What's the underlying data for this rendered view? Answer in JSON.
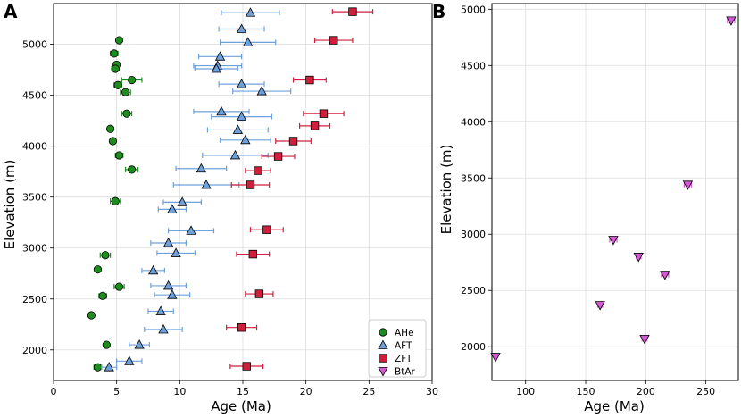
{
  "chart_data": [
    {
      "type": "scatter",
      "panel": "A",
      "xlabel": "Age (Ma)",
      "ylabel": "Elevation (m)",
      "xlim": [
        0,
        30
      ],
      "ylim": [
        1700,
        5400
      ],
      "xticks": [
        0,
        5,
        10,
        15,
        20,
        25,
        30
      ],
      "yticks": [
        2000,
        2500,
        3000,
        3500,
        4000,
        4500,
        5000
      ],
      "grid": true,
      "legend": "bottom-right",
      "series": [
        {
          "name": "AHe",
          "marker": "circle",
          "color": "#1e8c1e",
          "points": [
            {
              "x": 5.2,
              "y": 5040,
              "e": 0
            },
            {
              "x": 4.8,
              "y": 4910,
              "e": 0.3
            },
            {
              "x": 5.0,
              "y": 4800,
              "e": 0
            },
            {
              "x": 4.9,
              "y": 4760,
              "e": 0.3
            },
            {
              "x": 6.2,
              "y": 4650,
              "e": 0.8
            },
            {
              "x": 5.1,
              "y": 4600,
              "e": 0.3
            },
            {
              "x": 5.7,
              "y": 4530,
              "e": 0.4
            },
            {
              "x": 5.8,
              "y": 4320,
              "e": 0.4
            },
            {
              "x": 4.5,
              "y": 4170,
              "e": 0
            },
            {
              "x": 4.7,
              "y": 4050,
              "e": 0
            },
            {
              "x": 5.2,
              "y": 3910,
              "e": 0.3
            },
            {
              "x": 6.2,
              "y": 3770,
              "e": 0.5
            },
            {
              "x": 4.9,
              "y": 3460,
              "e": 0.4
            },
            {
              "x": 4.1,
              "y": 2930,
              "e": 0.4
            },
            {
              "x": 3.5,
              "y": 2790,
              "e": 0
            },
            {
              "x": 5.2,
              "y": 2620,
              "e": 0.4
            },
            {
              "x": 3.9,
              "y": 2530,
              "e": 0.3
            },
            {
              "x": 3.0,
              "y": 2340,
              "e": 0
            },
            {
              "x": 4.2,
              "y": 2050,
              "e": 0
            },
            {
              "x": 3.5,
              "y": 1830,
              "e": 0.3
            }
          ]
        },
        {
          "name": "AFT",
          "marker": "triangle-up",
          "color": "#6ea0dc",
          "points": [
            {
              "x": 15.6,
              "y": 5310,
              "e": 2.3
            },
            {
              "x": 14.9,
              "y": 5150,
              "e": 1.8
            },
            {
              "x": 15.4,
              "y": 5020,
              "e": 2.2
            },
            {
              "x": 13.2,
              "y": 4880,
              "e": 1.7
            },
            {
              "x": 13.0,
              "y": 4790,
              "e": 1.9
            },
            {
              "x": 12.9,
              "y": 4760,
              "e": 1.7
            },
            {
              "x": 14.9,
              "y": 4610,
              "e": 1.8
            },
            {
              "x": 16.5,
              "y": 4540,
              "e": 2.3
            },
            {
              "x": 13.3,
              "y": 4340,
              "e": 2.2
            },
            {
              "x": 14.9,
              "y": 4290,
              "e": 2.4
            },
            {
              "x": 14.6,
              "y": 4160,
              "e": 2.4
            },
            {
              "x": 15.2,
              "y": 4060,
              "e": 2.0
            },
            {
              "x": 14.4,
              "y": 3910,
              "e": 2.6
            },
            {
              "x": 11.7,
              "y": 3780,
              "e": 2.0
            },
            {
              "x": 12.1,
              "y": 3620,
              "e": 2.6
            },
            {
              "x": 10.2,
              "y": 3450,
              "e": 1.5
            },
            {
              "x": 9.4,
              "y": 3380,
              "e": 1.1
            },
            {
              "x": 10.9,
              "y": 3170,
              "e": 1.8
            },
            {
              "x": 9.1,
              "y": 3050,
              "e": 1.4
            },
            {
              "x": 9.7,
              "y": 2950,
              "e": 1.5
            },
            {
              "x": 7.9,
              "y": 2780,
              "e": 0.9
            },
            {
              "x": 9.1,
              "y": 2630,
              "e": 1.4
            },
            {
              "x": 9.4,
              "y": 2540,
              "e": 1.4
            },
            {
              "x": 8.5,
              "y": 2380,
              "e": 1.0
            },
            {
              "x": 8.7,
              "y": 2200,
              "e": 1.5
            },
            {
              "x": 6.8,
              "y": 2050,
              "e": 0.8
            },
            {
              "x": 6.0,
              "y": 1890,
              "e": 1.0
            },
            {
              "x": 4.4,
              "y": 1830,
              "e": 0.6
            }
          ]
        },
        {
          "name": "ZFT",
          "marker": "square",
          "color": "#d21e3c",
          "points": [
            {
              "x": 23.7,
              "y": 5320,
              "e": 1.6
            },
            {
              "x": 22.2,
              "y": 5040,
              "e": 1.5
            },
            {
              "x": 20.3,
              "y": 4650,
              "e": 1.3
            },
            {
              "x": 21.4,
              "y": 4320,
              "e": 1.6
            },
            {
              "x": 20.7,
              "y": 4200,
              "e": 1.2
            },
            {
              "x": 19.0,
              "y": 4050,
              "e": 1.4
            },
            {
              "x": 17.8,
              "y": 3900,
              "e": 1.3
            },
            {
              "x": 16.2,
              "y": 3760,
              "e": 1.0
            },
            {
              "x": 15.6,
              "y": 3620,
              "e": 1.5
            },
            {
              "x": 16.9,
              "y": 3180,
              "e": 1.3
            },
            {
              "x": 15.8,
              "y": 2940,
              "e": 1.3
            },
            {
              "x": 16.3,
              "y": 2550,
              "e": 1.1
            },
            {
              "x": 14.9,
              "y": 2220,
              "e": 1.2
            },
            {
              "x": 15.3,
              "y": 1840,
              "e": 1.3
            }
          ]
        },
        {
          "name": "BtAr",
          "marker": "triangle-down",
          "color": "#d25ad2",
          "points": []
        }
      ]
    },
    {
      "type": "scatter",
      "panel": "B",
      "xlabel": "Age (Ma)",
      "ylabel": "Elevation (m)",
      "xlim": [
        72,
        277
      ],
      "ylim": [
        1700,
        5050
      ],
      "xticks": [
        100,
        150,
        200,
        250
      ],
      "yticks": [
        2000,
        2500,
        3000,
        3500,
        4000,
        4500,
        5000
      ],
      "grid": true,
      "series": [
        {
          "name": "BtAr",
          "marker": "triangle-down",
          "color": "#d25ad2",
          "points": [
            {
              "x": 75,
              "y": 1910,
              "e": 0
            },
            {
              "x": 199,
              "y": 2070,
              "e": 2
            },
            {
              "x": 162,
              "y": 2370,
              "e": 2
            },
            {
              "x": 216,
              "y": 2640,
              "e": 3
            },
            {
              "x": 194,
              "y": 2800,
              "e": 2
            },
            {
              "x": 173,
              "y": 2950,
              "e": 3
            },
            {
              "x": 235,
              "y": 3440,
              "e": 3
            },
            {
              "x": 271,
              "y": 4900,
              "e": 3
            }
          ]
        }
      ]
    }
  ]
}
